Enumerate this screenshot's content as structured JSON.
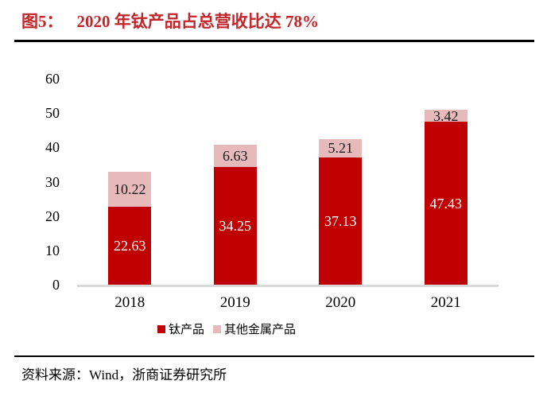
{
  "header": {
    "figure_label": "图5：",
    "title": "2020 年钛产品占总营收比达 78%",
    "title_color": "#c2262a"
  },
  "chart_data": {
    "type": "bar",
    "stacked": true,
    "title": "2020 年钛产品占总营收比达 78%",
    "categories": [
      "2018",
      "2019",
      "2020",
      "2021"
    ],
    "series": [
      {
        "name": "钛产品",
        "color": "#c00000",
        "label_color": "#ffffff",
        "values": [
          22.63,
          34.25,
          37.13,
          47.43
        ]
      },
      {
        "name": "其他金属产品",
        "color": "#e6b9bb",
        "label_color": "#1a1a1a",
        "values": [
          10.22,
          6.63,
          5.21,
          3.42
        ]
      }
    ],
    "xlabel": "",
    "ylabel": "",
    "ylim": [
      0,
      60
    ],
    "yticks": [
      0,
      10,
      20,
      30,
      40,
      50,
      60
    ],
    "grid": false,
    "legend_position": "bottom",
    "axis_line_color": "#d9d9d9"
  },
  "footer": {
    "source": "资料来源：Wind，浙商证券研究所"
  }
}
